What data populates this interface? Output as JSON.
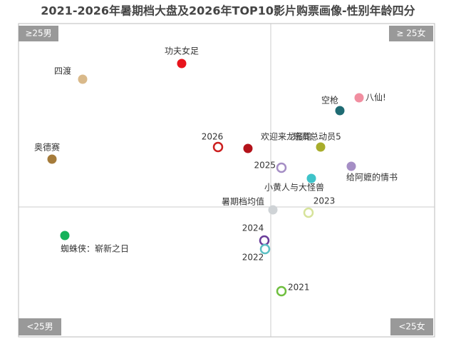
{
  "chart_data": {
    "type": "scatter",
    "title": "2021-2026年暑期档大盘及2026年TOP10影片购票画像-性别年龄四分",
    "quadrant_labels": {
      "top_left": "≥25男",
      "top_right": "≥ 25女",
      "bottom_left": "<25男",
      "bottom_right": "<25女"
    },
    "xlim": [
      -354,
      230
    ],
    "ylim": [
      -182,
      257
    ],
    "series": [
      {
        "name": "功夫女足",
        "color": "#e8141c",
        "hollow": false,
        "x": [
          -125
        ],
        "values": [
          201
        ]
      },
      {
        "name": "四渡",
        "color": "#d9b98a",
        "hollow": false,
        "x": [
          -264
        ],
        "values": [
          179
        ]
      },
      {
        "name": "奥德赛",
        "color": "#a57b3a",
        "hollow": false,
        "x": [
          -307
        ],
        "values": [
          67
        ]
      },
      {
        "name": "2026",
        "color": "#cc1f1f",
        "hollow": true,
        "x": [
          -74
        ],
        "values": [
          84
        ]
      },
      {
        "name": "欢迎来龙餐馆",
        "color": "#b3121a",
        "hollow": false,
        "x": [
          -32
        ],
        "values": [
          82
        ]
      },
      {
        "name": "空枪",
        "color": "#1f6b73",
        "hollow": false,
        "x": [
          97
        ],
        "values": [
          135
        ]
      },
      {
        "name": "八仙!",
        "color": "#f18ea0",
        "hollow": false,
        "x": [
          124
        ],
        "values": [
          153
        ]
      },
      {
        "name": "玩具总动员5",
        "color": "#a8ad2b",
        "hollow": false,
        "x": [
          70
        ],
        "values": [
          84
        ]
      },
      {
        "name": "2025",
        "color": "#a58ec5",
        "hollow": true,
        "x": [
          15
        ],
        "values": [
          55
        ]
      },
      {
        "name": "给阿嬷的情书",
        "color": "#a58ec5",
        "hollow": false,
        "x": [
          113
        ],
        "values": [
          57
        ]
      },
      {
        "name": "小黄人与大怪兽",
        "color": "#3ec3c9",
        "hollow": false,
        "x": [
          57
        ],
        "values": [
          40
        ]
      },
      {
        "name": "暑期档均值",
        "color": "#cfd3d6",
        "hollow": false,
        "x": [
          3
        ],
        "values": [
          -4
        ]
      },
      {
        "name": "2023",
        "color": "#d6e39a",
        "hollow": true,
        "x": [
          53
        ],
        "values": [
          -8
        ]
      },
      {
        "name": "蜘蛛侠：崭新之日",
        "color": "#16b25a",
        "hollow": false,
        "x": [
          -289
        ],
        "values": [
          -40
        ]
      },
      {
        "name": "2024",
        "color": "#6a3d9a",
        "hollow": true,
        "x": [
          -9
        ],
        "values": [
          -47
        ]
      },
      {
        "name": "2022",
        "color": "#5cc0c4",
        "hollow": true,
        "x": [
          -8
        ],
        "values": [
          -59
        ]
      },
      {
        "name": "2021",
        "color": "#6fbf3f",
        "hollow": true,
        "x": [
          15
        ],
        "values": [
          -118
        ]
      }
    ]
  }
}
